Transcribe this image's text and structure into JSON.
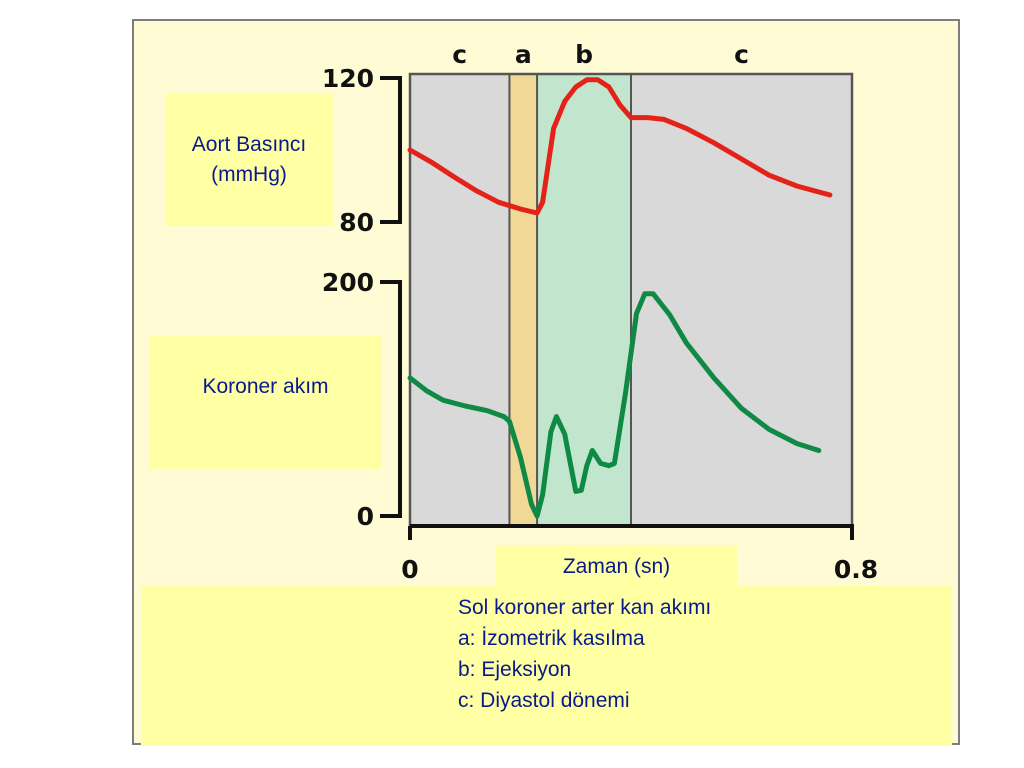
{
  "chart_data": {
    "type": "line",
    "x_range": [
      0,
      0.8
    ],
    "x_ticks": [
      "0",
      "0.8"
    ],
    "xlabel": "Zaman (sn)",
    "phases": [
      {
        "label": "c",
        "x_start": 0.0,
        "x_end": 0.18
      },
      {
        "label": "a",
        "x_start": 0.18,
        "x_end": 0.23
      },
      {
        "label": "b",
        "x_start": 0.23,
        "x_end": 0.4
      },
      {
        "label": "c",
        "x_start": 0.4,
        "x_end": 0.8
      }
    ],
    "panels": [
      {
        "ylabel": "Aort Basıncı (mmHg)",
        "ylabel_lines": [
          "Aort Basıncı",
          "(mmHg)"
        ],
        "ylim": [
          80,
          120
        ],
        "y_ticks": [
          "120",
          "80"
        ],
        "series": [
          {
            "color": "#e32219",
            "x": [
              0.0,
              0.04,
              0.08,
              0.12,
              0.16,
              0.2,
              0.23,
              0.24,
              0.26,
              0.28,
              0.3,
              0.32,
              0.34,
              0.36,
              0.38,
              0.4,
              0.43,
              0.46,
              0.5,
              0.55,
              0.6,
              0.65,
              0.7,
              0.76
            ],
            "y": [
              100,
              96.5,
              92.5,
              88.7,
              85.5,
              83.6,
              82.5,
              85.5,
              106,
              113.5,
              117.5,
              119.5,
              119.5,
              117.5,
              112.5,
              109,
              109,
              108.5,
              106,
              102,
              97.5,
              93,
              90,
              87.5
            ]
          }
        ]
      },
      {
        "ylabel": "Koroner akım",
        "ylabel_lines": [
          "Koroner akım"
        ],
        "ylim": [
          0,
          200
        ],
        "y_ticks": [
          "200",
          "0"
        ],
        "series": [
          {
            "color": "#0f8a45",
            "x": [
              0.0,
              0.03,
              0.06,
              0.1,
              0.14,
              0.17,
              0.18,
              0.2,
              0.22,
              0.23,
              0.24,
              0.255,
              0.265,
              0.28,
              0.3,
              0.31,
              0.32,
              0.33,
              0.345,
              0.36,
              0.37,
              0.39,
              0.41,
              0.425,
              0.44,
              0.47,
              0.5,
              0.55,
              0.6,
              0.65,
              0.7,
              0.74
            ],
            "y": [
              118,
              107,
              99,
              94,
              90,
              85,
              81,
              50,
              10,
              0,
              18,
              72,
              85,
              70,
              21,
              22,
              43,
              56,
              45,
              43,
              45,
              105,
              173,
              190,
              190,
              172,
              148,
              118,
              92,
              74,
              62,
              56
            ]
          }
        ]
      }
    ]
  },
  "legend": {
    "title": "Sol koroner arter kan akımı",
    "items": [
      "a: İzometrik kasılma",
      "b: Ejeksiyon",
      "c: Diyastol dönemi"
    ]
  },
  "colors": {
    "phase_c": "#d9d9d9",
    "phase_a": "#f2d896",
    "phase_b": "#c2e6cd",
    "panel_bg": "#fefbd5",
    "label_box": "#ffffa3",
    "label_text": "#0a1a8c"
  }
}
